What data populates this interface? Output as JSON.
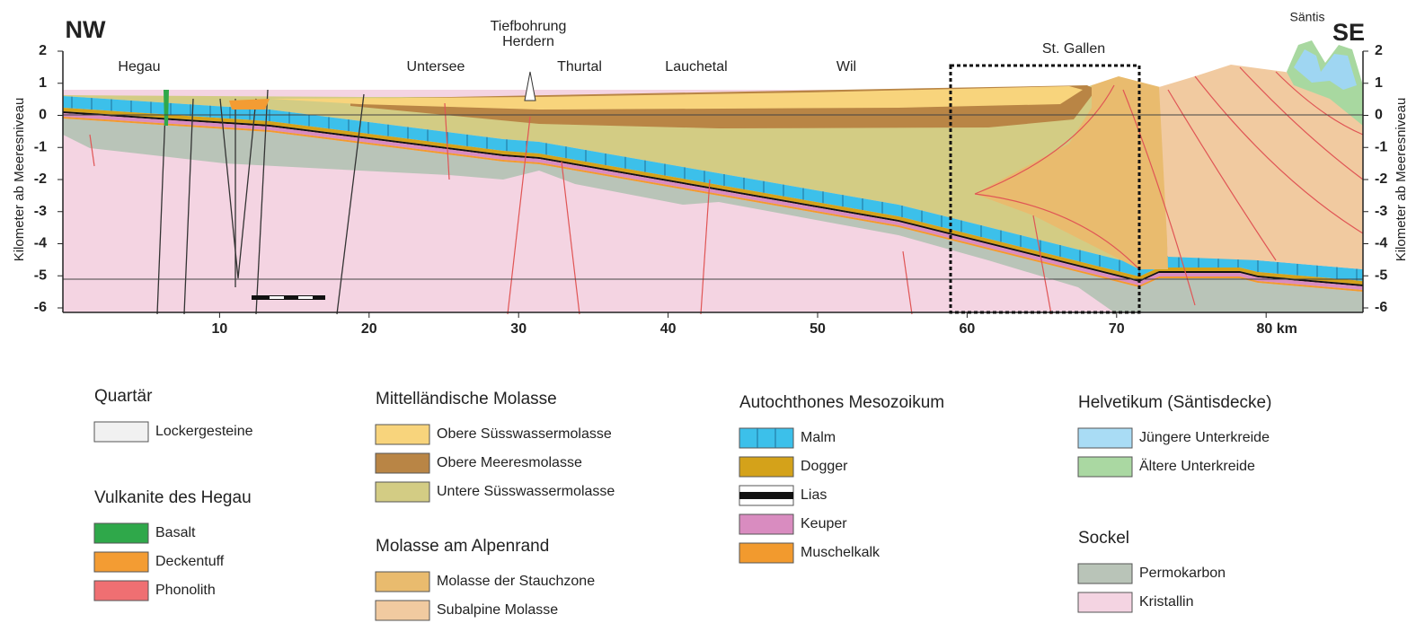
{
  "header": {
    "left": "NW",
    "right": "SE"
  },
  "axes": {
    "y_label": "Kilometer ab Meeresniveau",
    "y_ticks": [
      2,
      1,
      0,
      -1,
      -2,
      -3,
      -4,
      -5,
      -6
    ],
    "x_ticks": [
      10,
      20,
      30,
      40,
      50,
      60,
      70,
      "80 km"
    ]
  },
  "places": [
    "Hegau",
    "Untersee",
    "Tiefbohrung",
    "Herdern",
    "Thurtal",
    "Lauchetal",
    "Wil",
    "St. Gallen",
    "Säntis"
  ],
  "legend": [
    {
      "title": "Quartär",
      "items": [
        "Lockergesteine"
      ]
    },
    {
      "title": "Vulkanite des Hegau",
      "items": [
        "Basalt",
        "Deckentuff",
        "Phonolith"
      ]
    },
    {
      "title": "Mittelländische Molasse",
      "items": [
        "Obere Süsswassermolasse",
        "Obere Meeresmolasse",
        "Untere Süsswassermolasse"
      ]
    },
    {
      "title": "Molasse am Alpenrand",
      "items": [
        "Molasse der Stauchzone",
        "Subalpine Molasse"
      ]
    },
    {
      "title": "Autochthones Mesozoikum",
      "items": [
        "Malm",
        "Dogger",
        "Lias",
        "Keuper",
        "Muschelkalk"
      ]
    },
    {
      "title": "Helvetikum (Säntisdecke)",
      "items": [
        "Jüngere Unterkreide",
        "Ältere Unterkreide"
      ]
    },
    {
      "title": "Sockel",
      "items": [
        "Permokarbon",
        "Kristallin"
      ]
    }
  ]
}
